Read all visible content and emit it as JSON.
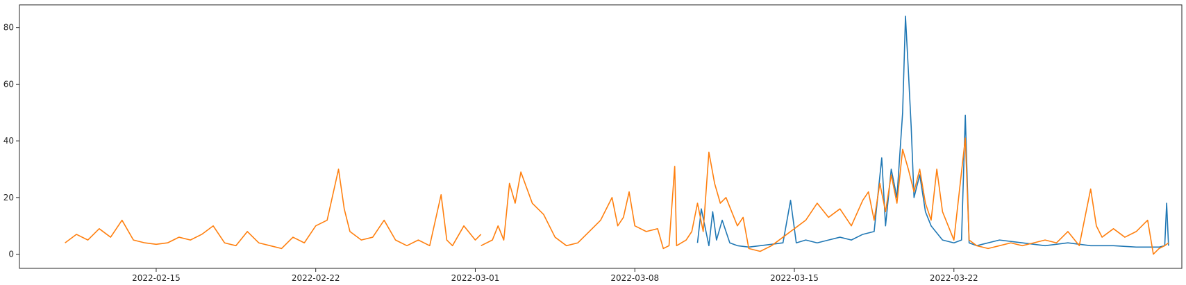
{
  "chart_data": {
    "type": "line",
    "title": "",
    "xlabel": "",
    "ylabel": "",
    "x_ticks": [
      "2022-02-15",
      "2022-02-22",
      "2022-03-01",
      "2022-03-08",
      "2022-03-15",
      "2022-03-22"
    ],
    "y_ticks": [
      0,
      20,
      40,
      60,
      80
    ],
    "xlim": [
      "2022-02-09",
      "2022-04-01"
    ],
    "ylim": [
      -5,
      88
    ],
    "grid": false,
    "legend": "none",
    "series": [
      {
        "color": "#1f77b4",
        "points": [
          [
            "2022-03-10 18:00",
            4
          ],
          [
            "2022-03-10 22:00",
            16
          ],
          [
            "2022-03-11 06:00",
            3
          ],
          [
            "2022-03-11 10:00",
            15
          ],
          [
            "2022-03-11 14:00",
            5
          ],
          [
            "2022-03-11 20:00",
            12
          ],
          [
            "2022-03-12 04:00",
            4
          ],
          [
            "2022-03-12 12:00",
            3
          ],
          [
            "2022-03-13 00:00",
            2.5
          ],
          [
            "2022-03-13 12:00",
            3
          ],
          [
            "2022-03-14 00:00",
            3.5
          ],
          [
            "2022-03-14 12:00",
            4
          ],
          [
            "2022-03-14 20:00",
            19
          ],
          [
            "2022-03-15 02:00",
            4
          ],
          [
            "2022-03-15 12:00",
            5
          ],
          [
            "2022-03-16 00:00",
            4
          ],
          [
            "2022-03-16 12:00",
            5
          ],
          [
            "2022-03-17 00:00",
            6
          ],
          [
            "2022-03-17 12:00",
            5
          ],
          [
            "2022-03-18 00:00",
            7
          ],
          [
            "2022-03-18 12:00",
            8
          ],
          [
            "2022-03-18 20:00",
            34
          ],
          [
            "2022-03-19 00:00",
            10
          ],
          [
            "2022-03-19 06:00",
            30
          ],
          [
            "2022-03-19 12:00",
            20
          ],
          [
            "2022-03-19 18:00",
            50
          ],
          [
            "2022-03-19 21:00",
            84
          ],
          [
            "2022-03-20 00:00",
            65
          ],
          [
            "2022-03-20 03:00",
            45
          ],
          [
            "2022-03-20 06:00",
            20
          ],
          [
            "2022-03-20 12:00",
            28
          ],
          [
            "2022-03-20 18:00",
            15
          ],
          [
            "2022-03-21 00:00",
            10
          ],
          [
            "2022-03-21 12:00",
            5
          ],
          [
            "2022-03-22 00:00",
            4
          ],
          [
            "2022-03-22 08:00",
            5
          ],
          [
            "2022-03-22 12:00",
            49
          ],
          [
            "2022-03-22 16:00",
            4
          ],
          [
            "2022-03-23 00:00",
            3
          ],
          [
            "2022-03-24 00:00",
            5
          ],
          [
            "2022-03-25 00:00",
            4
          ],
          [
            "2022-03-26 00:00",
            3
          ],
          [
            "2022-03-27 00:00",
            4
          ],
          [
            "2022-03-28 00:00",
            3
          ],
          [
            "2022-03-29 00:00",
            3
          ],
          [
            "2022-03-30 00:00",
            2.5
          ],
          [
            "2022-03-31 00:00",
            2.5
          ],
          [
            "2022-03-31 06:00",
            3
          ],
          [
            "2022-03-31 08:00",
            18
          ],
          [
            "2022-03-31 10:00",
            3
          ]
        ]
      },
      {
        "color": "#ff7f0e",
        "points": [
          [
            "2022-02-11 00:00",
            4
          ],
          [
            "2022-02-11 12:00",
            7
          ],
          [
            "2022-02-12 00:00",
            5
          ],
          [
            "2022-02-12 12:00",
            9
          ],
          [
            "2022-02-13 00:00",
            6
          ],
          [
            "2022-02-13 12:00",
            12
          ],
          [
            "2022-02-14 00:00",
            5
          ],
          [
            "2022-02-14 12:00",
            4
          ],
          [
            "2022-02-15 00:00",
            3.5
          ],
          [
            "2022-02-15 12:00",
            4
          ],
          [
            "2022-02-16 00:00",
            6
          ],
          [
            "2022-02-16 12:00",
            5
          ],
          [
            "2022-02-17 00:00",
            7
          ],
          [
            "2022-02-17 12:00",
            10
          ],
          [
            "2022-02-18 00:00",
            4
          ],
          [
            "2022-02-18 12:00",
            3
          ],
          [
            "2022-02-19 00:00",
            8
          ],
          [
            "2022-02-19 12:00",
            4
          ],
          [
            "2022-02-20 00:00",
            3
          ],
          [
            "2022-02-20 12:00",
            2
          ],
          [
            "2022-02-21 00:00",
            6
          ],
          [
            "2022-02-21 12:00",
            4
          ],
          [
            "2022-02-22 00:00",
            10
          ],
          [
            "2022-02-22 12:00",
            12
          ],
          [
            "2022-02-23 00:00",
            30
          ],
          [
            "2022-02-23 06:00",
            16
          ],
          [
            "2022-02-23 12:00",
            8
          ],
          [
            "2022-02-24 00:00",
            5
          ],
          [
            "2022-02-24 12:00",
            6
          ],
          [
            "2022-02-25 00:00",
            12
          ],
          [
            "2022-02-25 12:00",
            5
          ],
          [
            "2022-02-26 00:00",
            3
          ],
          [
            "2022-02-26 12:00",
            5
          ],
          [
            "2022-02-27 00:00",
            3
          ],
          [
            "2022-02-27 12:00",
            21
          ],
          [
            "2022-02-27 18:00",
            5
          ],
          [
            "2022-02-28 00:00",
            3
          ],
          [
            "2022-02-28 12:00",
            10
          ],
          [
            "2022-03-01 00:00",
            5
          ],
          [
            "2022-03-01 06:00",
            7
          ],
          [
            "2022-03-01 12:00",
            null
          ],
          [
            "2022-03-01 06:00",
            3
          ],
          [
            "2022-03-01 18:00",
            5
          ],
          [
            "2022-03-02 00:00",
            10
          ],
          [
            "2022-03-02 06:00",
            5
          ],
          [
            "2022-03-02 12:00",
            25
          ],
          [
            "2022-03-02 18:00",
            18
          ],
          [
            "2022-03-03 00:00",
            29
          ],
          [
            "2022-03-03 12:00",
            18
          ],
          [
            "2022-03-04 00:00",
            14
          ],
          [
            "2022-03-04 12:00",
            6
          ],
          [
            "2022-03-05 00:00",
            3
          ],
          [
            "2022-03-05 12:00",
            4
          ],
          [
            "2022-03-06 00:00",
            8
          ],
          [
            "2022-03-06 12:00",
            12
          ],
          [
            "2022-03-07 00:00",
            20
          ],
          [
            "2022-03-07 06:00",
            10
          ],
          [
            "2022-03-07 12:00",
            13
          ],
          [
            "2022-03-07 18:00",
            22
          ],
          [
            "2022-03-08 00:00",
            10
          ],
          [
            "2022-03-08 12:00",
            8
          ],
          [
            "2022-03-09 00:00",
            9
          ],
          [
            "2022-03-09 06:00",
            2
          ],
          [
            "2022-03-09 12:00",
            3
          ],
          [
            "2022-03-09 18:00",
            31
          ],
          [
            "2022-03-09 20:00",
            3
          ],
          [
            "2022-03-10 06:00",
            5
          ],
          [
            "2022-03-10 12:00",
            8
          ],
          [
            "2022-03-10 18:00",
            18
          ],
          [
            "2022-03-11 00:00",
            8
          ],
          [
            "2022-03-11 06:00",
            36
          ],
          [
            "2022-03-11 12:00",
            25
          ],
          [
            "2022-03-11 18:00",
            18
          ],
          [
            "2022-03-12 00:00",
            20
          ],
          [
            "2022-03-12 06:00",
            15
          ],
          [
            "2022-03-12 12:00",
            10
          ],
          [
            "2022-03-12 18:00",
            13
          ],
          [
            "2022-03-13 00:00",
            2
          ],
          [
            "2022-03-13 12:00",
            1
          ],
          [
            "2022-03-14 00:00",
            3
          ],
          [
            "2022-03-14 12:00",
            6
          ],
          [
            "2022-03-15 00:00",
            9
          ],
          [
            "2022-03-15 12:00",
            12
          ],
          [
            "2022-03-16 00:00",
            18
          ],
          [
            "2022-03-16 12:00",
            13
          ],
          [
            "2022-03-17 00:00",
            16
          ],
          [
            "2022-03-17 12:00",
            10
          ],
          [
            "2022-03-18 00:00",
            19
          ],
          [
            "2022-03-18 06:00",
            22
          ],
          [
            "2022-03-18 12:00",
            12
          ],
          [
            "2022-03-18 18:00",
            25
          ],
          [
            "2022-03-19 00:00",
            15
          ],
          [
            "2022-03-19 06:00",
            28
          ],
          [
            "2022-03-19 12:00",
            18
          ],
          [
            "2022-03-19 18:00",
            37
          ],
          [
            "2022-03-20 00:00",
            30
          ],
          [
            "2022-03-20 06:00",
            22
          ],
          [
            "2022-03-20 12:00",
            30
          ],
          [
            "2022-03-20 18:00",
            18
          ],
          [
            "2022-03-21 00:00",
            12
          ],
          [
            "2022-03-21 06:00",
            30
          ],
          [
            "2022-03-21 12:00",
            15
          ],
          [
            "2022-03-22 00:00",
            5
          ],
          [
            "2022-03-22 12:00",
            41
          ],
          [
            "2022-03-22 16:00",
            5
          ],
          [
            "2022-03-23 00:00",
            3
          ],
          [
            "2022-03-23 12:00",
            2
          ],
          [
            "2022-03-24 00:00",
            3
          ],
          [
            "2022-03-24 12:00",
            4
          ],
          [
            "2022-03-25 00:00",
            3
          ],
          [
            "2022-03-25 12:00",
            4
          ],
          [
            "2022-03-26 00:00",
            5
          ],
          [
            "2022-03-26 12:00",
            4
          ],
          [
            "2022-03-27 00:00",
            8
          ],
          [
            "2022-03-27 12:00",
            3
          ],
          [
            "2022-03-28 00:00",
            23
          ],
          [
            "2022-03-28 06:00",
            10
          ],
          [
            "2022-03-28 12:00",
            6
          ],
          [
            "2022-03-29 00:00",
            9
          ],
          [
            "2022-03-29 12:00",
            6
          ],
          [
            "2022-03-30 00:00",
            8
          ],
          [
            "2022-03-30 12:00",
            12
          ],
          [
            "2022-03-30 18:00",
            0
          ],
          [
            "2022-03-31 00:00",
            2
          ],
          [
            "2022-03-31 06:00",
            3
          ],
          [
            "2022-03-31 10:00",
            4
          ]
        ]
      }
    ]
  }
}
